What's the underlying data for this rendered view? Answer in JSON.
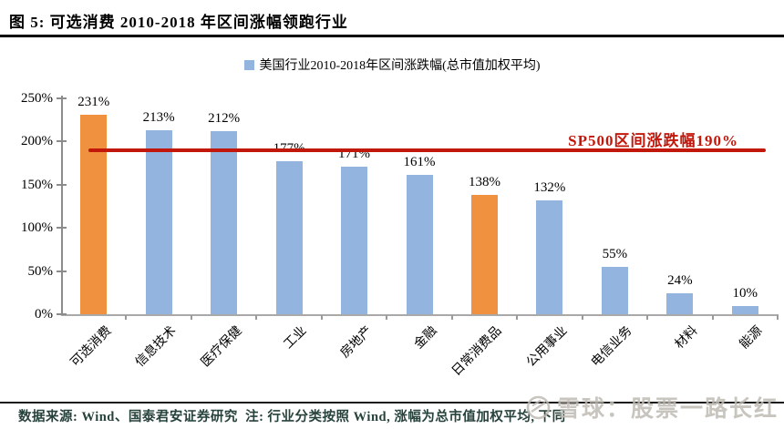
{
  "header": {
    "title": "图 5: 可选消费 2010-2018 年区间涨幅领跑行业"
  },
  "legend": {
    "label": "美国行业2010-2018年区间涨跌幅(总市值加权平均)",
    "marker_color": "#92b4de"
  },
  "chart_data": {
    "type": "bar",
    "title": "美国行业2010-2018年区间涨跌幅(总市值加权平均)",
    "categories": [
      "可选消费",
      "信息技术",
      "医疗保健",
      "工业",
      "房地产",
      "金融",
      "日常消费品",
      "公用事业",
      "电信业务",
      "材料",
      "能源"
    ],
    "values": [
      231,
      213,
      212,
      177,
      171,
      161,
      138,
      132,
      55,
      24,
      10
    ],
    "value_labels": [
      "231%",
      "213%",
      "212%",
      "177%",
      "171%",
      "161%",
      "138%",
      "132%",
      "55%",
      "24%",
      "10%"
    ],
    "highlight_indices": [
      0,
      6
    ],
    "bar_color": "#92b4de",
    "highlight_color": "#f0913f",
    "ylim": [
      0,
      250
    ],
    "y_tick_values": [
      0,
      50,
      100,
      150,
      200,
      250
    ],
    "y_tick_labels": [
      "0%",
      "50%",
      "100%",
      "150%",
      "200%",
      "250%"
    ],
    "grid": false,
    "legend_position": "top-center",
    "reference_line": {
      "value": 190,
      "label": "SP500区间涨跌幅190%",
      "color": "#c2170b"
    }
  },
  "footer": {
    "source_note": "数据来源: Wind、国泰君安证券研究  注: 行业分类按照 Wind, 涨幅为总市值加权平均, 下同"
  },
  "watermark": {
    "logo_icon": "xueqiu-logo",
    "text": "雪球：股票一路长红"
  }
}
